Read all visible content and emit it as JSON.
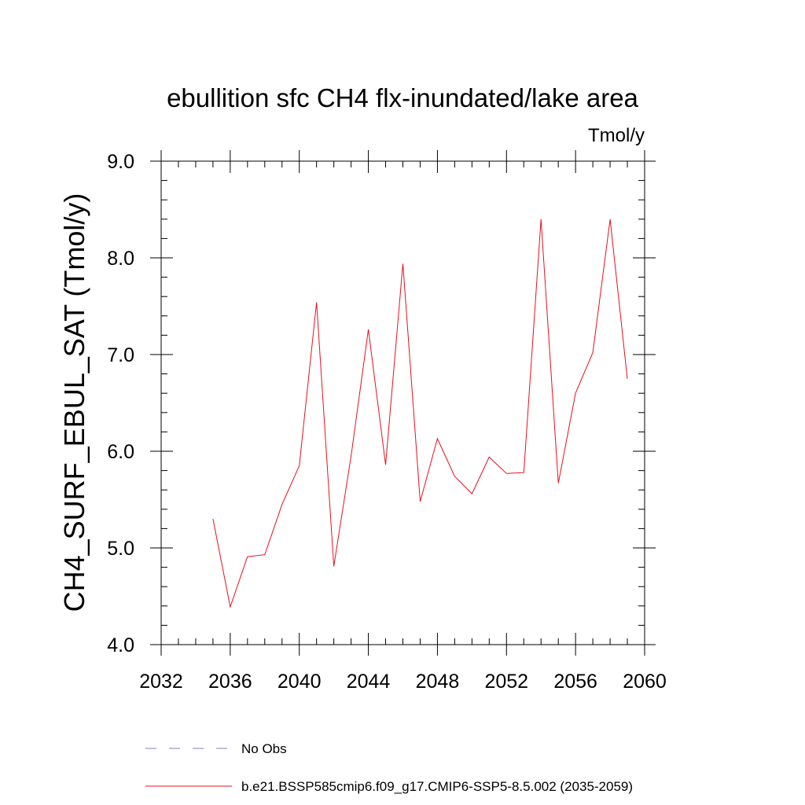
{
  "chart_data": {
    "type": "line",
    "title": "ebullition sfc CH4 flx-inundated/lake area",
    "units_label": "Tmol/y",
    "ylabel": "CH4_SURF_EBUL_SAT  (Tmol/y)",
    "xlabel": "",
    "xlim": [
      2032,
      2060
    ],
    "ylim": [
      4.0,
      9.0
    ],
    "x_ticks": [
      2032,
      2036,
      2040,
      2044,
      2048,
      2052,
      2056,
      2060
    ],
    "x_tick_labels": [
      "2032",
      "2036",
      "2040",
      "2044",
      "2048",
      "2052",
      "2056",
      "2060"
    ],
    "y_ticks": [
      4.0,
      5.0,
      6.0,
      7.0,
      8.0,
      9.0
    ],
    "y_tick_labels": [
      "4.0",
      "5.0",
      "6.0",
      "7.0",
      "8.0",
      "9.0"
    ],
    "x_minor_step": 1,
    "y_minor_step": 0.2,
    "grid": false,
    "legend_position": "bottom",
    "series": [
      {
        "name": "b.e21.BSSP585cmip6.f09_g17.CMIP6-SSP5-8.5.002 (2035-2059)",
        "color": "#e8101c",
        "x": [
          2035,
          2036,
          2037,
          2038,
          2039,
          2040,
          2041,
          2042,
          2043,
          2044,
          2045,
          2046,
          2047,
          2048,
          2049,
          2050,
          2051,
          2052,
          2053,
          2054,
          2055,
          2056,
          2057,
          2058,
          2059
        ],
        "y": [
          5.3,
          4.39,
          4.91,
          4.93,
          5.45,
          5.85,
          7.54,
          4.81,
          5.95,
          7.26,
          5.86,
          7.94,
          5.48,
          6.13,
          5.74,
          5.56,
          5.94,
          5.77,
          5.78,
          8.4,
          5.67,
          6.6,
          7.02,
          8.4,
          6.75
        ]
      }
    ],
    "legend": [
      {
        "label": "No Obs",
        "style": "dashed",
        "color": "#8080c0"
      },
      {
        "label": "b.e21.BSSP585cmip6.f09_g17.CMIP6-SSP5-8.5.002 (2035-2059)",
        "style": "solid",
        "color": "#e8101c"
      }
    ]
  }
}
